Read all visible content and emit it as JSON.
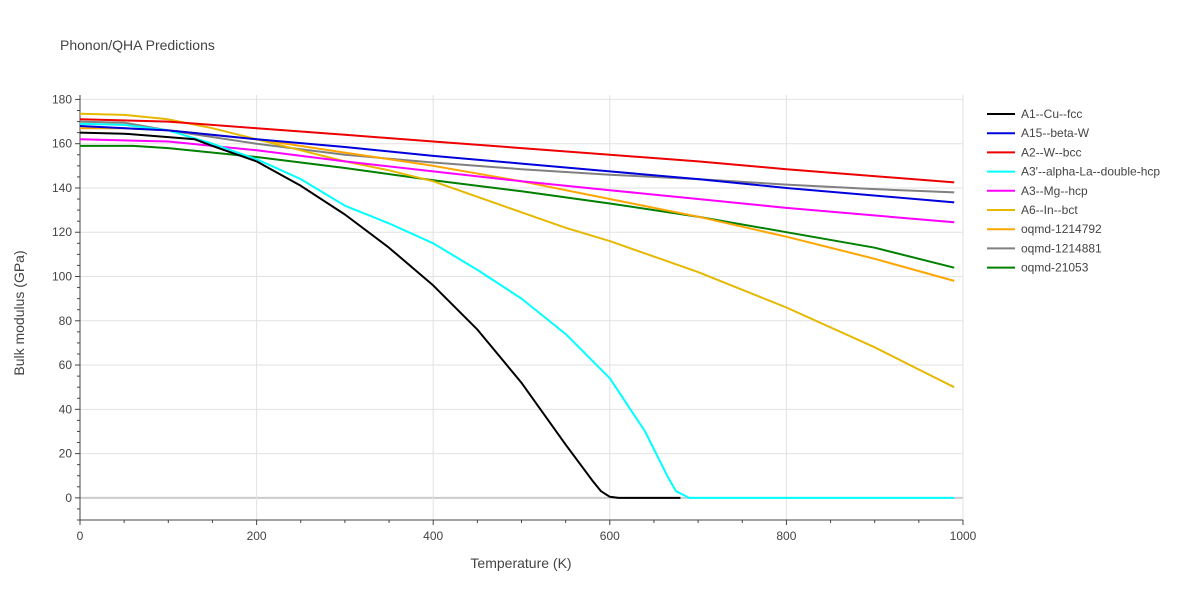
{
  "chart_data": {
    "type": "line",
    "title": "Phonon/QHA Predictions",
    "xlabel": "Temperature (K)",
    "ylabel": "Bulk modulus (GPa)",
    "xlim": [
      0,
      1000
    ],
    "ylim": [
      -10,
      182
    ],
    "xticks": [
      0,
      200,
      400,
      600,
      800,
      1000
    ],
    "yticks": [
      0,
      20,
      40,
      60,
      80,
      100,
      120,
      140,
      160,
      180
    ],
    "grid": true,
    "legend_position": "top-right outside",
    "series": [
      {
        "name": "A1--Cu--fcc",
        "color": "#000000",
        "x": [
          0,
          50,
          100,
          130,
          150,
          200,
          250,
          300,
          350,
          400,
          450,
          500,
          550,
          580,
          590,
          600,
          610,
          640,
          680
        ],
        "y": [
          165,
          164.5,
          163,
          162,
          159,
          152,
          141,
          128,
          113,
          96,
          76,
          52,
          24,
          8,
          3,
          0.5,
          0,
          0,
          0
        ]
      },
      {
        "name": "A15--beta-W",
        "color": "#0000dd",
        "x": [
          0,
          100,
          200,
          300,
          400,
          500,
          600,
          700,
          800,
          990
        ],
        "y": [
          168,
          166,
          162,
          158.5,
          154.5,
          151,
          147.5,
          144,
          140,
          133.5
        ]
      },
      {
        "name": "A2--W--bcc",
        "color": "#ee0000",
        "x": [
          0,
          100,
          200,
          300,
          400,
          500,
          600,
          700,
          800,
          990
        ],
        "y": [
          171,
          170,
          167,
          164,
          161,
          158,
          155,
          152,
          148.5,
          142.5
        ]
      },
      {
        "name": "A3'--alpha-La--double-hcp",
        "color": "#00ffff",
        "x": [
          0,
          50,
          100,
          150,
          200,
          250,
          300,
          350,
          400,
          450,
          500,
          550,
          600,
          640,
          665,
          675,
          690,
          800,
          990
        ],
        "y": [
          169,
          168.5,
          166,
          160,
          153,
          144,
          132,
          124,
          115,
          103,
          90,
          74,
          54,
          30,
          10,
          3,
          0,
          0,
          0
        ]
      },
      {
        "name": "A3--Mg--hcp",
        "color": "#ff00ff",
        "x": [
          0,
          100,
          200,
          300,
          400,
          500,
          600,
          700,
          800,
          990
        ],
        "y": [
          162,
          161,
          157,
          152,
          147.5,
          143,
          139,
          135,
          131,
          124.5
        ]
      },
      {
        "name": "A6--In--bct",
        "color": "#e6b800",
        "x": [
          0,
          50,
          100,
          150,
          200,
          250,
          300,
          350,
          400,
          450,
          500,
          550,
          600,
          650,
          700,
          750,
          800,
          850,
          900,
          950,
          990
        ],
        "y": [
          173.5,
          173,
          171,
          167,
          162,
          157,
          152,
          148,
          143,
          136,
          129,
          122,
          116,
          109,
          102,
          94,
          86,
          77,
          68,
          58,
          50
        ]
      },
      {
        "name": "oqmd-1214792",
        "color": "#ffa500",
        "x": [
          0,
          50,
          100,
          200,
          300,
          400,
          500,
          600,
          700,
          800,
          900,
          990
        ],
        "y": [
          167,
          167,
          166,
          162,
          156,
          150,
          143,
          135,
          127,
          118,
          108,
          98
        ]
      },
      {
        "name": "oqmd-1214881",
        "color": "#808080",
        "x": [
          0,
          50,
          100,
          200,
          300,
          400,
          500,
          600,
          700,
          800,
          900,
          990
        ],
        "y": [
          170,
          169.5,
          166,
          160,
          155,
          151.5,
          148.5,
          146,
          144,
          141.5,
          139.5,
          138
        ]
      },
      {
        "name": "oqmd-21053",
        "color": "#008000",
        "x": [
          0,
          60,
          100,
          200,
          300,
          400,
          500,
          600,
          700,
          800,
          900,
          990
        ],
        "y": [
          159,
          159,
          158,
          154,
          149,
          143.5,
          138.5,
          133,
          127,
          120,
          113,
          104
        ]
      }
    ]
  }
}
